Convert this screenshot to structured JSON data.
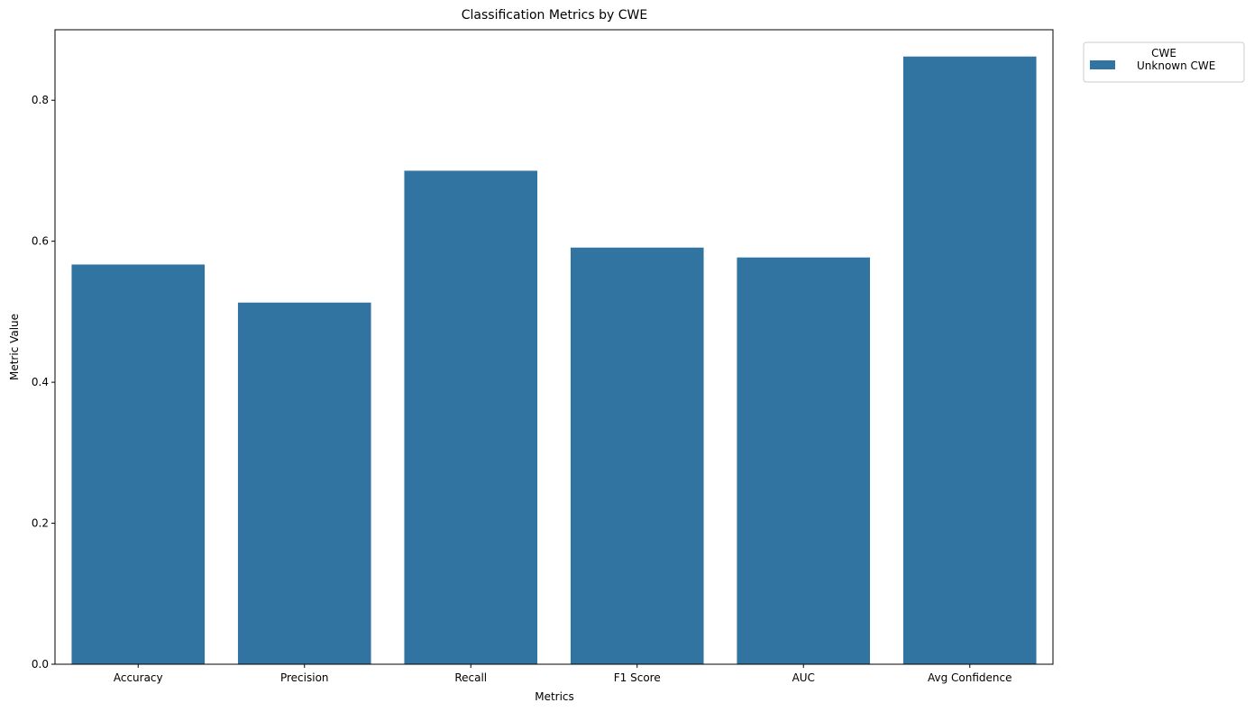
{
  "chart_data": {
    "type": "bar",
    "title": "Classification Metrics by CWE",
    "xlabel": "Metrics",
    "ylabel": "Metric Value",
    "categories": [
      "Accuracy",
      "Precision",
      "Recall",
      "F1 Score",
      "AUC",
      "Avg Confidence"
    ],
    "series": [
      {
        "name": "Unknown CWE",
        "values": [
          0.567,
          0.513,
          0.7,
          0.591,
          0.577,
          0.862
        ]
      }
    ],
    "ylim": [
      0,
      0.9
    ],
    "yticks": [
      "0.0",
      "0.2",
      "0.4",
      "0.6",
      "0.8"
    ],
    "grid": false,
    "legend": {
      "title": "CWE",
      "placement": "upper-right-outside"
    },
    "bar_color": "#3274a1"
  }
}
